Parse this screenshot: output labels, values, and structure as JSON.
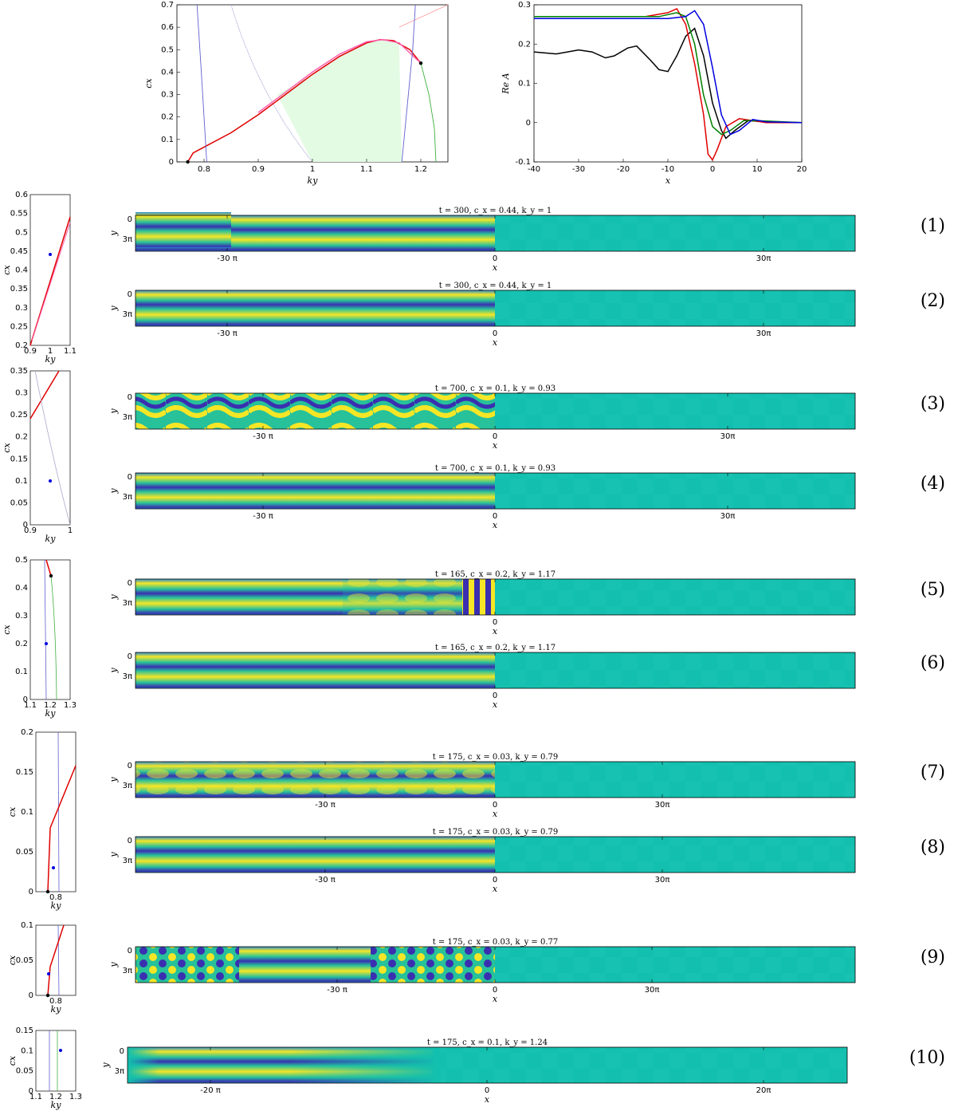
{
  "chart_data": [
    {
      "type": "line",
      "id": "top-left",
      "xlabel": "k_y",
      "ylabel": "c_x",
      "xlim": [
        0.75,
        1.25
      ],
      "ylim": [
        0,
        0.7
      ],
      "xticks": [
        "0.8",
        "0.9",
        "1",
        "1.1",
        "1.2"
      ],
      "yticks": [
        "0",
        "0.1",
        "0.2",
        "0.3",
        "0.4",
        "0.5",
        "0.6",
        "0.7"
      ],
      "series": [
        {
          "name": "",
          "color": "#e00000",
          "points": [
            [
              0.77,
              0
            ],
            [
              0.78,
              0.04
            ],
            [
              0.85,
              0.13
            ],
            [
              0.9,
              0.21
            ],
            [
              0.95,
              0.3
            ],
            [
              1.0,
              0.39
            ],
            [
              1.05,
              0.47
            ],
            [
              1.1,
              0.53
            ],
            [
              1.125,
              0.545
            ],
            [
              1.15,
              0.54
            ],
            [
              1.18,
              0.5
            ],
            [
              1.2,
              0.44
            ]
          ]
        },
        {
          "name": "",
          "color": "#ff5fae",
          "points": [
            [
              0.9,
              0.22
            ],
            [
              0.95,
              0.31
            ],
            [
              1.0,
              0.4
            ],
            [
              1.05,
              0.48
            ],
            [
              1.1,
              0.535
            ],
            [
              1.13,
              0.545
            ],
            [
              1.16,
              0.53
            ],
            [
              1.2,
              0.44
            ]
          ]
        },
        {
          "name": "",
          "color": "#6060d0",
          "points": [
            [
              0.787,
              0.7
            ],
            [
              0.795,
              0.4
            ],
            [
              0.8,
              0.2
            ],
            [
              0.805,
              0
            ]
          ]
        },
        {
          "name": "",
          "color": "#6060d0",
          "points": [
            [
              1.165,
              0
            ],
            [
              1.175,
              0.25
            ],
            [
              1.185,
              0.5
            ],
            [
              1.19,
              0.7
            ]
          ]
        },
        {
          "name": "",
          "color": "#40b040",
          "points": [
            [
              1.2,
              0.44
            ],
            [
              1.215,
              0.3
            ],
            [
              1.225,
              0.15
            ],
            [
              1.228,
              0
            ]
          ]
        }
      ],
      "markers": [
        [
          0.77,
          0
        ],
        [
          1.2,
          0.44
        ]
      ]
    },
    {
      "type": "line",
      "id": "top-right",
      "xlabel": "x",
      "ylabel": "Re A",
      "xlim": [
        -40,
        20
      ],
      "ylim": [
        -0.1,
        0.3
      ],
      "xticks": [
        "-40",
        "-30",
        "-20",
        "-10",
        "0",
        "10",
        "20"
      ],
      "yticks": [
        "-0.1",
        "0",
        "0.1",
        "0.2",
        "0.3"
      ],
      "series": [
        {
          "name": "",
          "color": "#000000",
          "points": [
            [
              -40,
              0.18
            ],
            [
              -35,
              0.175
            ],
            [
              -30,
              0.185
            ],
            [
              -27,
              0.18
            ],
            [
              -24,
              0.165
            ],
            [
              -22,
              0.17
            ],
            [
              -19,
              0.19
            ],
            [
              -17,
              0.195
            ],
            [
              -14,
              0.16
            ],
            [
              -12,
              0.135
            ],
            [
              -10,
              0.13
            ],
            [
              -8,
              0.17
            ],
            [
              -6,
              0.22
            ],
            [
              -4,
              0.24
            ],
            [
              -2,
              0.17
            ],
            [
              0,
              0.05
            ],
            [
              2,
              -0.02
            ],
            [
              3,
              -0.04
            ],
            [
              5,
              -0.02
            ],
            [
              8,
              0.005
            ],
            [
              12,
              0.002
            ],
            [
              20,
              0
            ]
          ]
        },
        {
          "name": "",
          "color": "#e00000",
          "points": [
            [
              -40,
              0.27
            ],
            [
              -15,
              0.27
            ],
            [
              -10,
              0.28
            ],
            [
              -8,
              0.29
            ],
            [
              -6,
              0.25
            ],
            [
              -4,
              0.15
            ],
            [
              -2,
              0.02
            ],
            [
              -1,
              -0.08
            ],
            [
              0,
              -0.095
            ],
            [
              1,
              -0.07
            ],
            [
              3,
              -0.01
            ],
            [
              6,
              0.01
            ],
            [
              9,
              0.005
            ],
            [
              12,
              0
            ],
            [
              20,
              0
            ]
          ]
        },
        {
          "name": "",
          "color": "#008000",
          "points": [
            [
              -40,
              0.27
            ],
            [
              -12,
              0.27
            ],
            [
              -8,
              0.28
            ],
            [
              -6,
              0.27
            ],
            [
              -4,
              0.2
            ],
            [
              -2,
              0.07
            ],
            [
              0,
              -0.01
            ],
            [
              2,
              -0.03
            ],
            [
              4,
              -0.02
            ],
            [
              7,
              0.005
            ],
            [
              10,
              0.005
            ],
            [
              20,
              0
            ]
          ]
        },
        {
          "name": "",
          "color": "#0000e0",
          "points": [
            [
              -40,
              0.265
            ],
            [
              -10,
              0.265
            ],
            [
              -6,
              0.27
            ],
            [
              -4,
              0.285
            ],
            [
              -2,
              0.25
            ],
            [
              0,
              0.14
            ],
            [
              2,
              0.02
            ],
            [
              4,
              -0.03
            ],
            [
              6,
              -0.02
            ],
            [
              9,
              0.008
            ],
            [
              12,
              0.002
            ],
            [
              20,
              0
            ]
          ]
        }
      ]
    }
  ],
  "rows": [
    {
      "label": "(1)",
      "title": "t = 300, c_x = 0.44, k_y = 1",
      "xticks": [
        "-30 π",
        "0",
        "30π"
      ],
      "ytick_top": "0",
      "ytick_bot": "3π",
      "xlabel": "x",
      "ylabel": "y"
    },
    {
      "label": "(2)",
      "title": "t = 300, c_x = 0.44, k_y = 1",
      "xticks": [
        "-30 π",
        "0",
        "30π"
      ],
      "ytick_top": "0",
      "ytick_bot": "3π",
      "xlabel": "x",
      "ylabel": "y"
    },
    {
      "label": "(3)",
      "title": "t = 700, c_x = 0.1, k_y = 0.93",
      "xticks": [
        "-30 π",
        "0",
        "30π"
      ],
      "ytick_top": "0",
      "ytick_bot": "3π",
      "xlabel": "x",
      "ylabel": "y"
    },
    {
      "label": "(4)",
      "title": "t = 700, c_x = 0.1, k_y = 0.93",
      "xticks": [
        "-30 π",
        "0",
        "30π"
      ],
      "ytick_top": "0",
      "ytick_bot": "3π",
      "xlabel": "x",
      "ylabel": "y"
    },
    {
      "label": "(5)",
      "title": "t = 165, c_x = 0.2, k_y = 1.17",
      "xticks": [
        "0"
      ],
      "ytick_top": "0",
      "ytick_bot": "3π",
      "xlabel": "x",
      "ylabel": "y"
    },
    {
      "label": "(6)",
      "title": "t = 165, c_x = 0.2, k_y = 1.17",
      "xticks": [
        "0"
      ],
      "ytick_top": "0",
      "ytick_bot": "3π",
      "xlabel": "x",
      "ylabel": "y"
    },
    {
      "label": "(7)",
      "title": "t = 175, c_x = 0.03, k_y = 0.79",
      "xticks": [
        "-30 π",
        "0",
        "30π"
      ],
      "ytick_top": "0",
      "ytick_bot": "3π",
      "xlabel": "x",
      "ylabel": "y"
    },
    {
      "label": "(8)",
      "title": "t = 175, c_x = 0.03, k_y = 0.79",
      "xticks": [
        "-30 π",
        "0",
        "30π"
      ],
      "ytick_top": "0",
      "ytick_bot": "3π",
      "xlabel": "x",
      "ylabel": "y"
    },
    {
      "label": "(9)",
      "title": "t = 175, c_x = 0.03, k_y = 0.77",
      "xticks": [
        "-30 π",
        "0",
        "30π"
      ],
      "ytick_top": "0",
      "ytick_bot": "3π",
      "xlabel": "x",
      "ylabel": "y"
    },
    {
      "label": "(10)",
      "title": "t = 175, c_x = 0.1, k_y = 1.24",
      "xticks": [
        "-20 π",
        "0",
        "20π"
      ],
      "ytick_top": "0",
      "ytick_bot": "3π",
      "xlabel": "x",
      "ylabel": "y"
    }
  ],
  "side_plots": [
    {
      "xlabel": "k_y",
      "ylabel": "c_x",
      "xticks": [
        "0.9",
        "1",
        "1.1"
      ],
      "yticks": [
        "0.2",
        "0.25",
        "0.3",
        "0.35",
        "0.4",
        "0.45",
        "0.5",
        "0.55",
        "0.6"
      ]
    },
    {
      "xlabel": "k_y",
      "ylabel": "c_x",
      "xticks": [
        "0.9",
        "1"
      ],
      "yticks": [
        "0",
        "0.05",
        "0.1",
        "0.15",
        "0.2",
        "0.25",
        "0.3",
        "0.35"
      ]
    },
    {
      "xlabel": "k_y",
      "ylabel": "c_x",
      "xticks": [
        "1.1",
        "1.2",
        "1.3"
      ],
      "yticks": [
        "0",
        "0.1",
        "0.2",
        "0.3",
        "0.4",
        "0.5"
      ]
    },
    {
      "xlabel": "k_y",
      "ylabel": "c_x",
      "xticks": [
        "0.8"
      ],
      "yticks": [
        "0",
        "0.05",
        "0.1",
        "0.15",
        "0.2"
      ]
    },
    {
      "xlabel": "k_y",
      "ylabel": "c_x",
      "xticks": [
        "0.8"
      ],
      "yticks": [
        "0",
        "0.05",
        "0.1"
      ]
    },
    {
      "xlabel": "k_y",
      "ylabel": "c_x",
      "xticks": [
        "1.1",
        "1.2",
        "1.3"
      ],
      "yticks": [
        "0",
        "0.05",
        "0.1",
        "0.15"
      ]
    }
  ],
  "colors": {
    "pattern_bg": "#13bfae",
    "stripe_yellow": "#f5e626",
    "stripe_blue": "#3a2fb0",
    "region_fill": "#e3fbe3"
  }
}
